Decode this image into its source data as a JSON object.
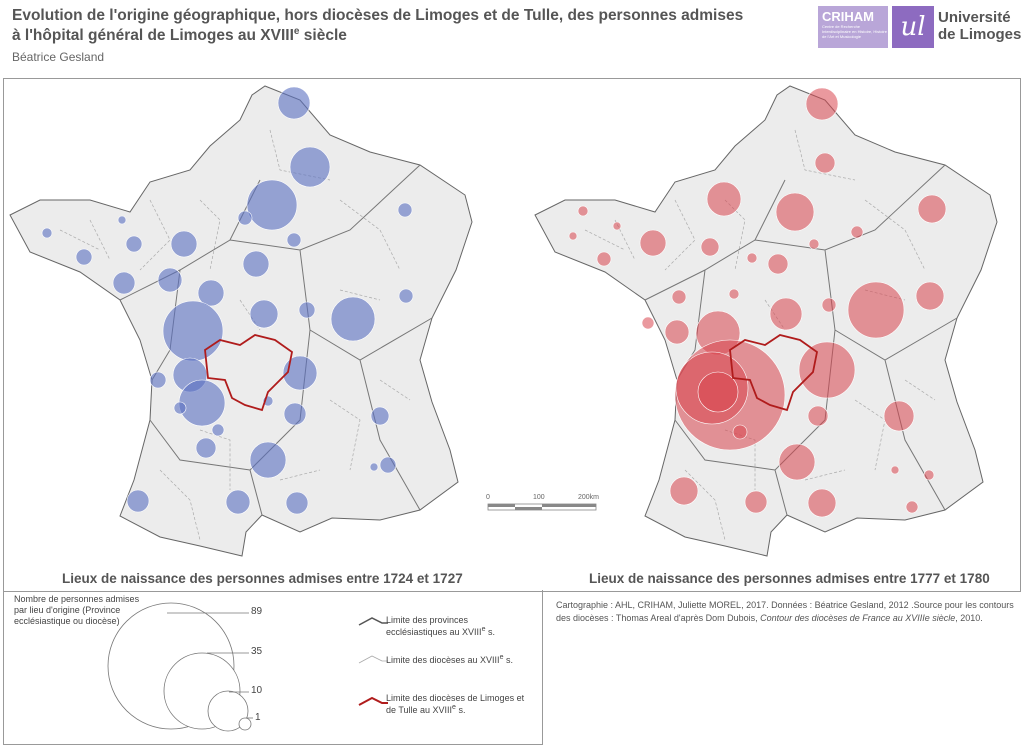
{
  "header": {
    "title_line1": "Evolution de l'origine géographique, hors diocèses de Limoges et de Tulle, des personnes admises",
    "title_line2": "à l'hôpital général de Limoges au XVIII",
    "title_sup": "e",
    "title_end": " siècle",
    "author": "Béatrice Gesland"
  },
  "logos": {
    "criham": "CRIHAM",
    "criham_sub": "Centre de Recherche Interdisciplinaire en Histoire, Histoire de l'Art et Musicologie",
    "univ_mark": "ul",
    "univ_line1": "Université",
    "univ_line2": "de Limoges"
  },
  "maps": [
    {
      "caption": "Lieux de naissance des personnes admises entre 1724 et 1727",
      "color": "#5a6fc2"
    },
    {
      "caption": "Lieux de naissance des personnes admises entre 1777 et 1780",
      "color": "#d9454f"
    }
  ],
  "scale_bar": {
    "labels": [
      "0",
      "100",
      "200km"
    ]
  },
  "legend": {
    "size_title": "Nombre de personnes admises par lieu d'origine (Province ecclésiastique ou diocèse)",
    "size_values": [
      "89",
      "35",
      "10",
      "1"
    ],
    "lines": [
      {
        "label": "Limite des provinces ecclésiastiques au XVIII",
        "sup": "e",
        "end": " s.",
        "color": "#555555"
      },
      {
        "label": "Limite des diocèses au XVIII",
        "sup": "e",
        "end": " s.",
        "color": "#aaaaaa"
      },
      {
        "label": "Limite des diocèses de Limoges et de Tulle au XVIII",
        "sup": "e",
        "end": " s.",
        "color": "#b01c1c"
      }
    ]
  },
  "credits": {
    "text": "Cartographie : AHL, CRIHAM, Juliette MOREL, 2017. Données : Béatrice Gesland, 2012 .Source pour les contours des diocèses : Thomas Areal d'après Dom Dubois, ",
    "italic": "Contour des diocèses de France au XVIIIe siècle",
    "end": ", 2010."
  }
}
